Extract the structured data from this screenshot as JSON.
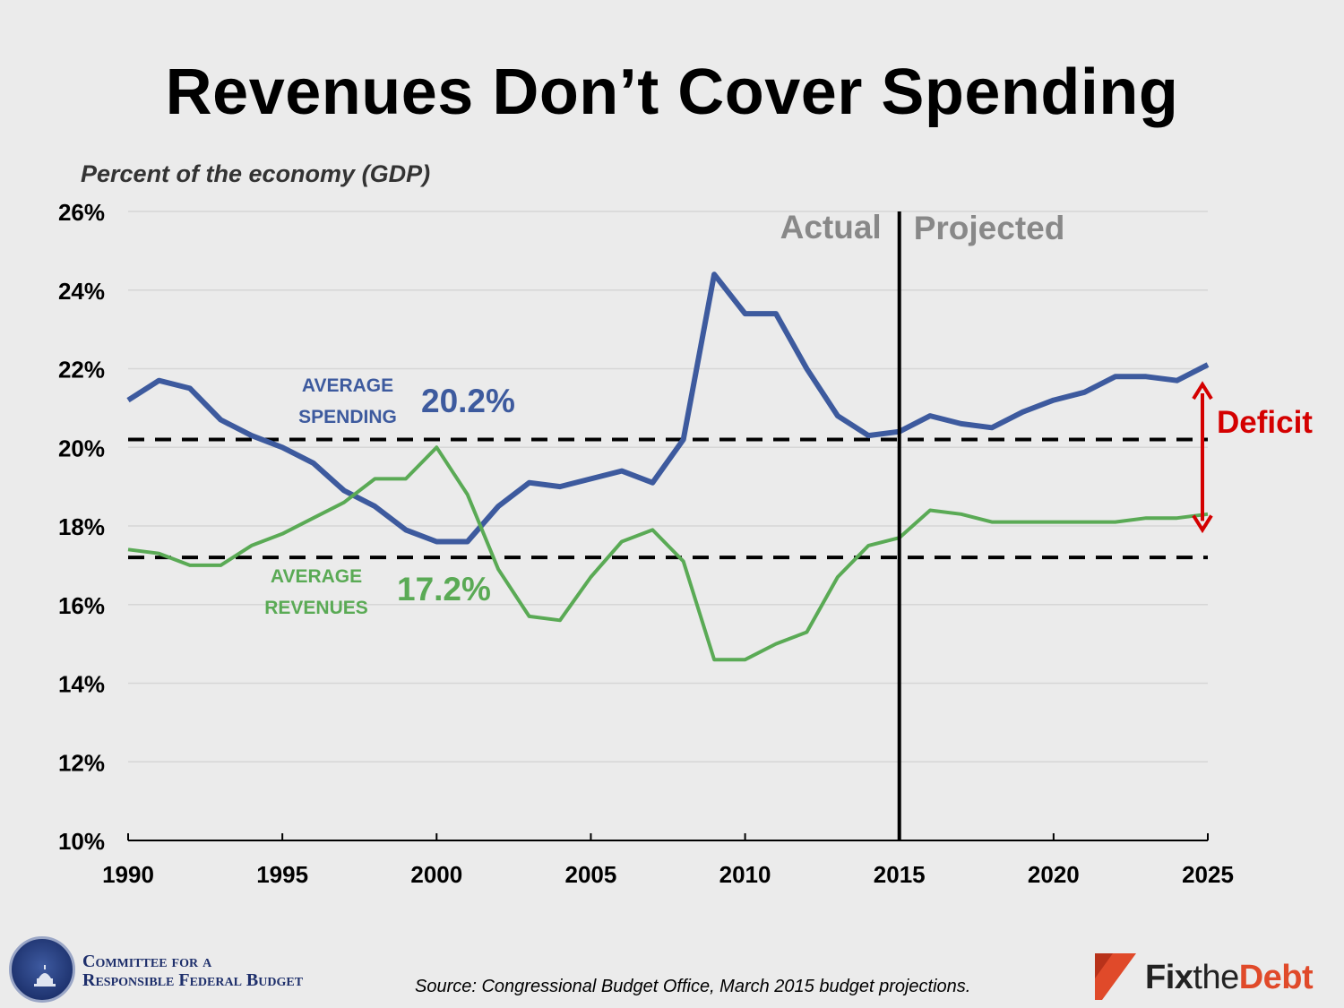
{
  "chart_data": {
    "type": "line",
    "title": "Revenues Don’t Cover Spending",
    "ylabel": "Percent of the economy (GDP)",
    "xlim": [
      1990,
      2025
    ],
    "ylim": [
      10,
      26
    ],
    "xticks": [
      1990,
      1995,
      2000,
      2005,
      2010,
      2015,
      2020,
      2025
    ],
    "xtick_labels": [
      "1990",
      "1995",
      "2000",
      "2005",
      "2010",
      "2015",
      "2020",
      "2025"
    ],
    "yticks": [
      10,
      12,
      14,
      16,
      18,
      20,
      22,
      24,
      26
    ],
    "ytick_labels": [
      "10%",
      "12%",
      "14%",
      "16%",
      "18%",
      "20%",
      "22%",
      "24%",
      "26%"
    ],
    "grid": true,
    "x": [
      1990,
      1991,
      1992,
      1993,
      1994,
      1995,
      1996,
      1997,
      1998,
      1999,
      2000,
      2001,
      2002,
      2003,
      2004,
      2005,
      2006,
      2007,
      2008,
      2009,
      2010,
      2011,
      2012,
      2013,
      2014,
      2015,
      2016,
      2017,
      2018,
      2019,
      2020,
      2021,
      2022,
      2023,
      2024,
      2025
    ],
    "series": [
      {
        "key": "spending",
        "color": "#3d5a9e",
        "values": [
          21.2,
          21.7,
          21.5,
          20.7,
          20.3,
          20.0,
          19.6,
          18.9,
          18.5,
          17.9,
          17.6,
          17.6,
          18.5,
          19.1,
          19.0,
          19.2,
          19.4,
          19.1,
          20.2,
          24.4,
          23.4,
          23.4,
          22.0,
          20.8,
          20.3,
          20.4,
          20.8,
          20.6,
          20.5,
          20.9,
          21.2,
          21.4,
          21.8,
          21.8,
          21.7,
          22.1
        ]
      },
      {
        "key": "revenues",
        "color": "#5aaa55",
        "values": [
          17.4,
          17.3,
          17.0,
          17.0,
          17.5,
          17.8,
          18.2,
          18.6,
          19.2,
          19.2,
          20.0,
          18.8,
          16.9,
          15.7,
          15.6,
          16.7,
          17.6,
          17.9,
          17.1,
          14.6,
          14.6,
          15.0,
          15.3,
          16.7,
          17.5,
          17.7,
          18.4,
          18.3,
          18.1,
          18.1,
          18.1,
          18.1,
          18.1,
          18.2,
          18.2,
          18.3
        ]
      }
    ],
    "reference_lines": [
      {
        "key": "avg_spending",
        "value": 20.2,
        "style": "dashed",
        "line1": "AVERAGE",
        "line2": "SPENDING",
        "value_label": "20.2%",
        "color": "#3d5a9e"
      },
      {
        "key": "avg_revenues",
        "value": 17.2,
        "style": "dashed",
        "line1": "AVERAGE",
        "line2": "REVENUES",
        "value_label": "17.2%",
        "color": "#5aaa55"
      }
    ],
    "divider": {
      "x": 2015,
      "left_label": "Actual",
      "right_label": "Projected"
    },
    "deficit_annotation": {
      "label": "Deficit",
      "x": 2025,
      "from": 17.9,
      "to": 21.6,
      "color": "#d40000"
    }
  },
  "footer": {
    "org_line1": "Committee for a",
    "org_line2": "Responsible Federal Budget",
    "source": "Source: Congressional Budget Office, March 2015 budget projections.",
    "logo_fix": "Fix",
    "logo_the": "the",
    "logo_debt": "Debt"
  }
}
